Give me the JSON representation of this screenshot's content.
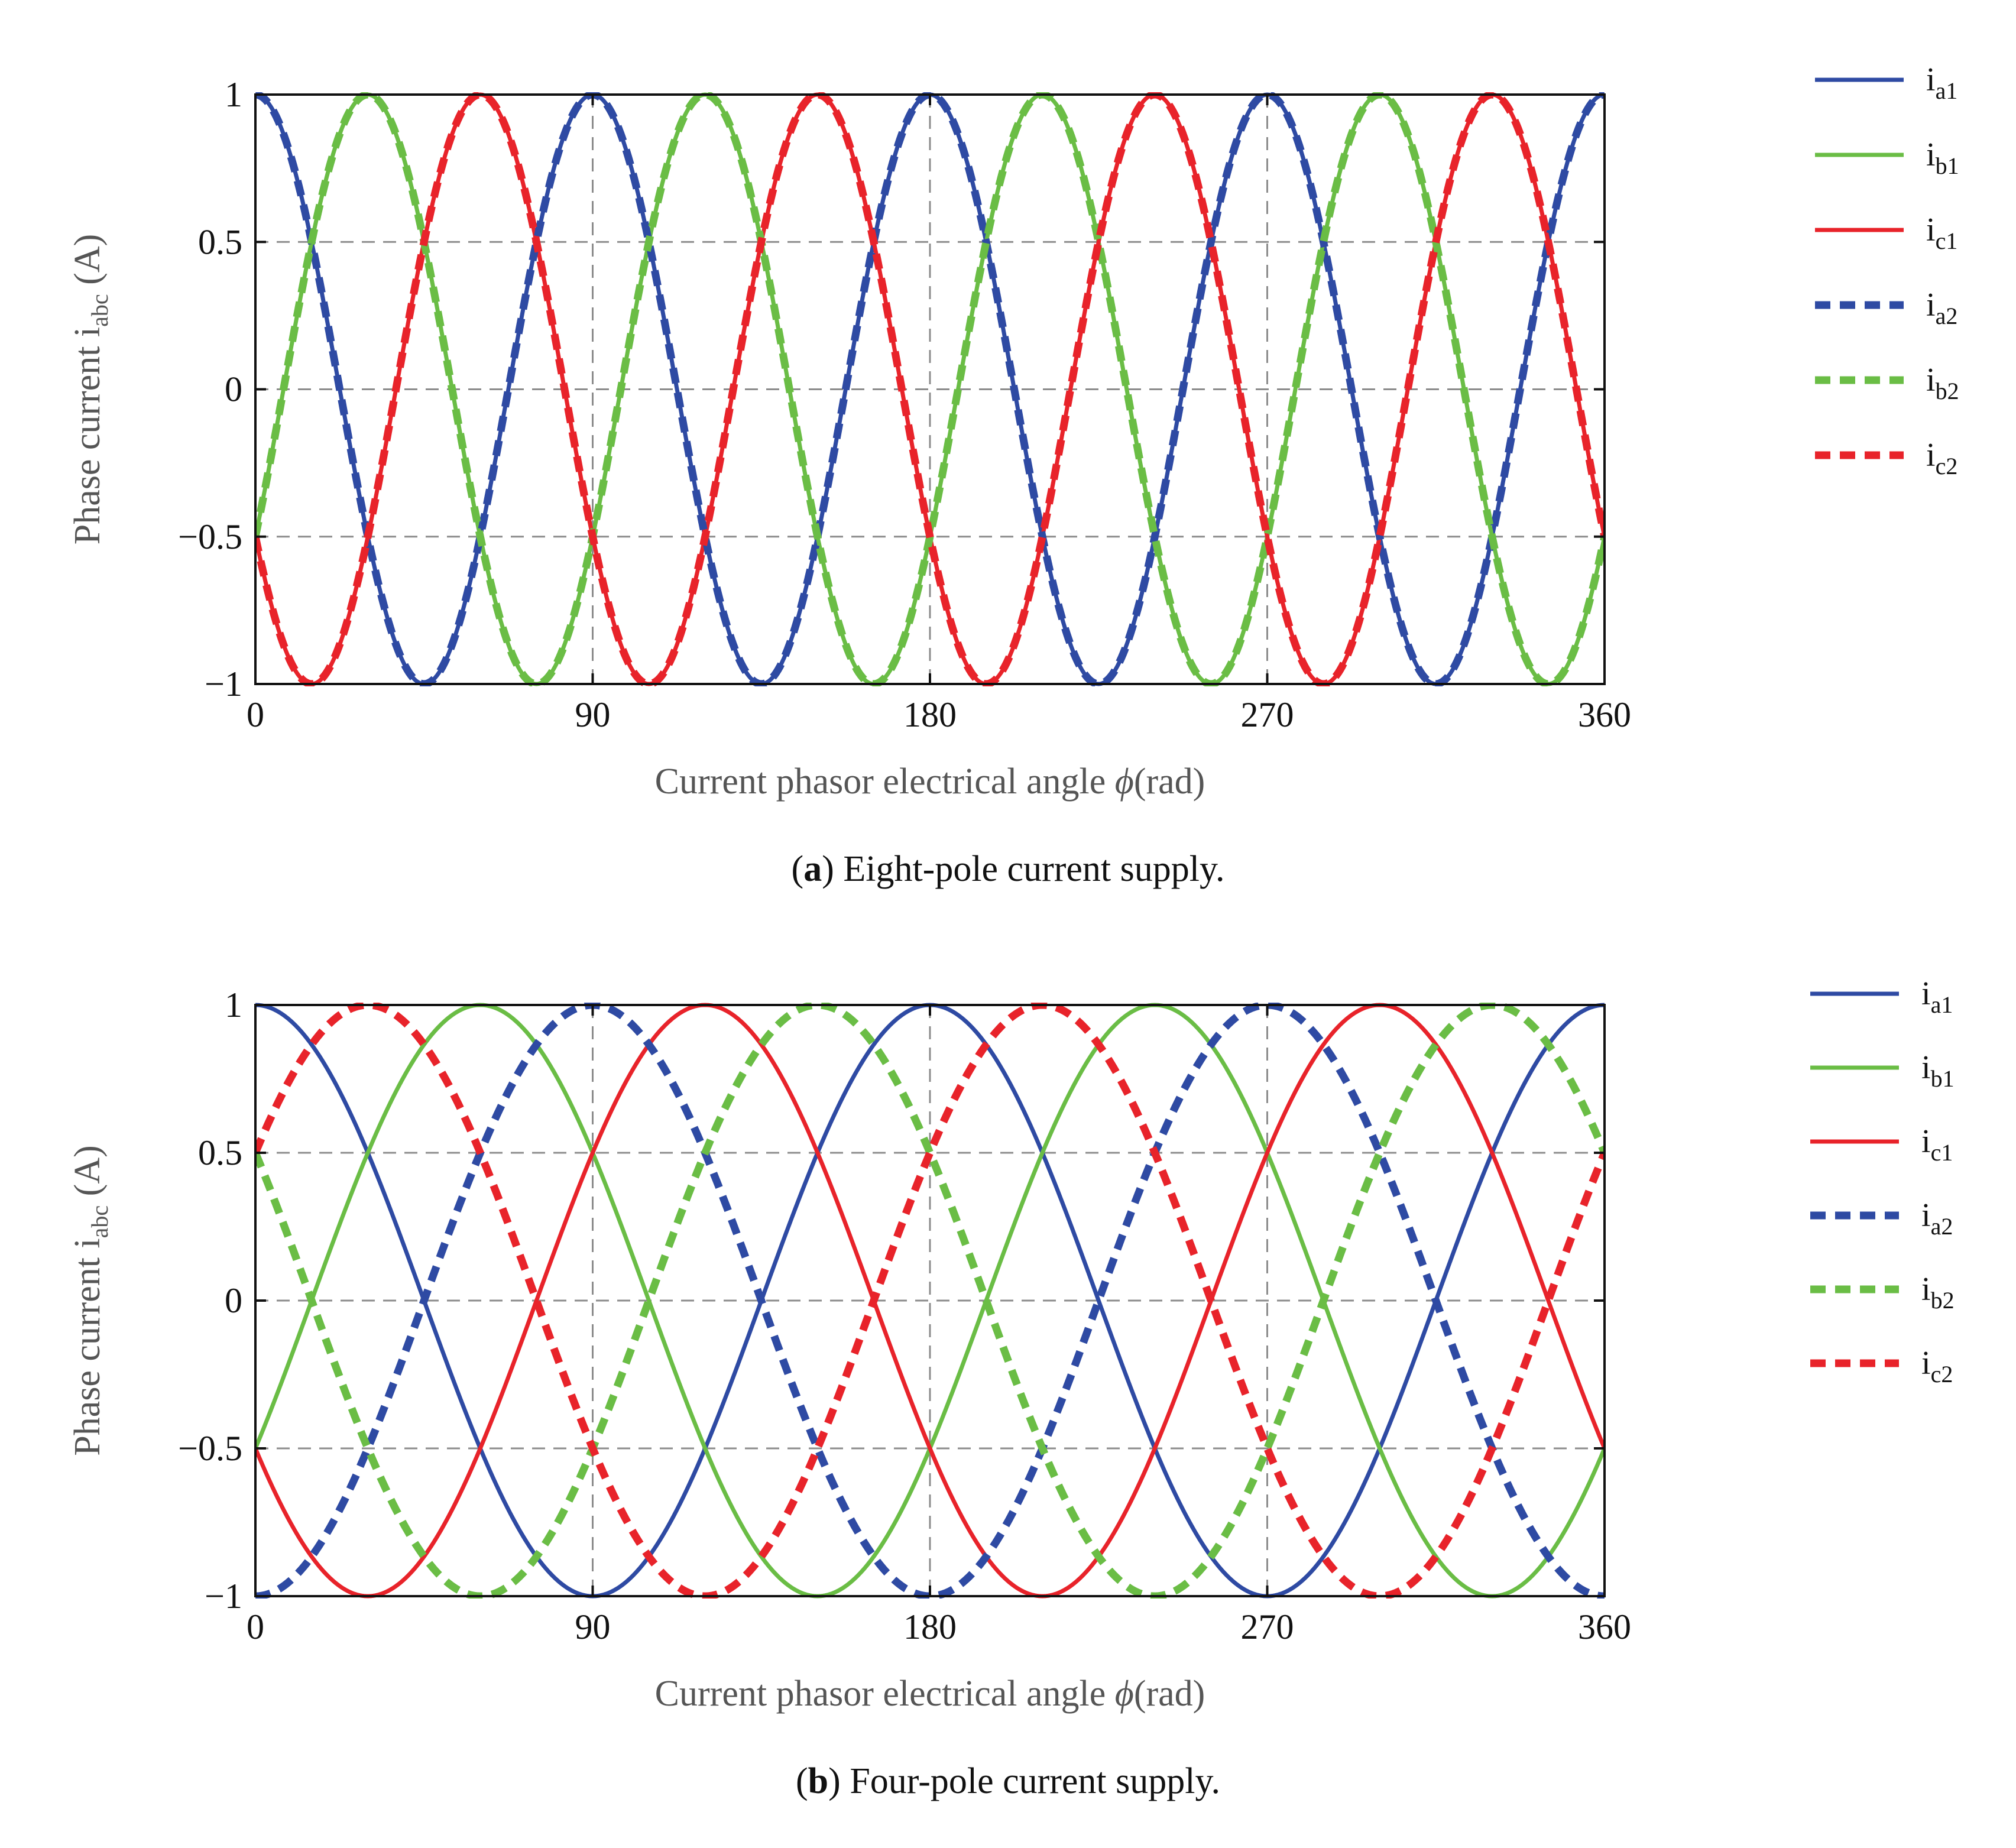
{
  "colors": {
    "a": "#2e4aa3",
    "b": "#6abd45",
    "c": "#e8232a",
    "grid": "#8c8c8c",
    "axis": "#111111"
  },
  "chart_data": [
    {
      "type": "line",
      "panel_id": "a",
      "x_range": [
        0,
        360
      ],
      "ylim": [
        -1,
        1
      ],
      "xticks": [
        0,
        90,
        180,
        270,
        360
      ],
      "xtick_labels": [
        "0",
        "90",
        "180",
        "270",
        "360"
      ],
      "yticks": [
        1,
        0.5,
        0,
        -0.5,
        -1
      ],
      "ytick_labels": [
        "1",
        "0.5",
        "0",
        "−0.5",
        "−1"
      ],
      "xlabel": "Current phasor electrical angle ",
      "xlabel_symbol": "ϕ",
      "xlabel_unit": "(rad)",
      "ylabel": "Phase current i",
      "ylabel_sub": "abc",
      "ylabel_unit": " (A)",
      "grid": true,
      "caption_letter": "a",
      "caption_text": " Eight-pole current supply.",
      "function": "y = cos(frequency · x° + phase°)",
      "series": [
        {
          "name": "i",
          "sub": "a1",
          "color_key": "a",
          "style": "solid",
          "frequency": 4,
          "phase_deg": 0
        },
        {
          "name": "i",
          "sub": "b1",
          "color_key": "b",
          "style": "solid",
          "frequency": 4,
          "phase_deg": -120
        },
        {
          "name": "i",
          "sub": "c1",
          "color_key": "c",
          "style": "solid",
          "frequency": 4,
          "phase_deg": 120
        },
        {
          "name": "i",
          "sub": "a2",
          "color_key": "a",
          "style": "dashed",
          "frequency": 4,
          "phase_deg": 0
        },
        {
          "name": "i",
          "sub": "b2",
          "color_key": "b",
          "style": "dashed",
          "frequency": 4,
          "phase_deg": -120
        },
        {
          "name": "i",
          "sub": "c2",
          "color_key": "c",
          "style": "dashed",
          "frequency": 4,
          "phase_deg": 120
        }
      ]
    },
    {
      "type": "line",
      "panel_id": "b",
      "x_range": [
        0,
        360
      ],
      "ylim": [
        -1,
        1
      ],
      "xticks": [
        0,
        90,
        180,
        270,
        360
      ],
      "xtick_labels": [
        "0",
        "90",
        "180",
        "270",
        "360"
      ],
      "yticks": [
        1,
        0.5,
        0,
        -0.5,
        -1
      ],
      "ytick_labels": [
        "1",
        "0.5",
        "0",
        "−0.5",
        "−1"
      ],
      "xlabel": "Current phasor electrical angle ",
      "xlabel_symbol": "ϕ",
      "xlabel_unit": "(rad)",
      "ylabel": "Phase current i",
      "ylabel_sub": "abc",
      "ylabel_unit": " (A)",
      "grid": true,
      "caption_letter": "b",
      "caption_text": " Four-pole current supply.",
      "function": "y = cos(frequency · x° + phase°)",
      "series": [
        {
          "name": "i",
          "sub": "a1",
          "color_key": "a",
          "style": "solid",
          "frequency": 2,
          "phase_deg": 0
        },
        {
          "name": "i",
          "sub": "b1",
          "color_key": "b",
          "style": "solid",
          "frequency": 2,
          "phase_deg": -120
        },
        {
          "name": "i",
          "sub": "c1",
          "color_key": "c",
          "style": "solid",
          "frequency": 2,
          "phase_deg": 120
        },
        {
          "name": "i",
          "sub": "a2",
          "color_key": "a",
          "style": "dashed",
          "frequency": 2,
          "phase_deg": 180
        },
        {
          "name": "i",
          "sub": "b2",
          "color_key": "b",
          "style": "dashed",
          "frequency": 2,
          "phase_deg": 60
        },
        {
          "name": "i",
          "sub": "c2",
          "color_key": "c",
          "style": "dashed",
          "frequency": 2,
          "phase_deg": -60
        }
      ]
    }
  ]
}
